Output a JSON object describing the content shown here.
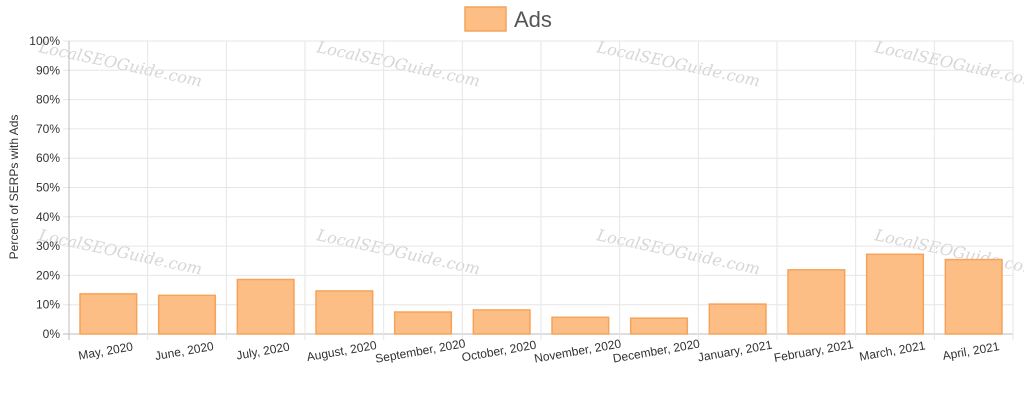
{
  "chart_data": {
    "type": "bar",
    "categories": [
      "May, 2020",
      "June, 2020",
      "July, 2020",
      "August, 2020",
      "September, 2020",
      "October, 2020",
      "November, 2020",
      "December, 2020",
      "January, 2021",
      "February, 2021",
      "March, 2021",
      "April, 2021"
    ],
    "series": [
      {
        "name": "Ads",
        "values": [
          13.7,
          13.2,
          18.6,
          14.7,
          7.5,
          8.2,
          5.7,
          5.4,
          10.2,
          21.9,
          27.2,
          25.4
        ],
        "color": "#fdbe85",
        "border_color": "#f5a35a"
      }
    ],
    "ylabel": "Percent of SERPs with Ads",
    "ylim": [
      0,
      100
    ],
    "y_ticks": [
      "0%",
      "10%",
      "20%",
      "30%",
      "40%",
      "50%",
      "60%",
      "70%",
      "80%",
      "90%",
      "100%"
    ],
    "grid": true,
    "legend_position": "top-center",
    "watermark": "LocalSEOGuide.com"
  }
}
